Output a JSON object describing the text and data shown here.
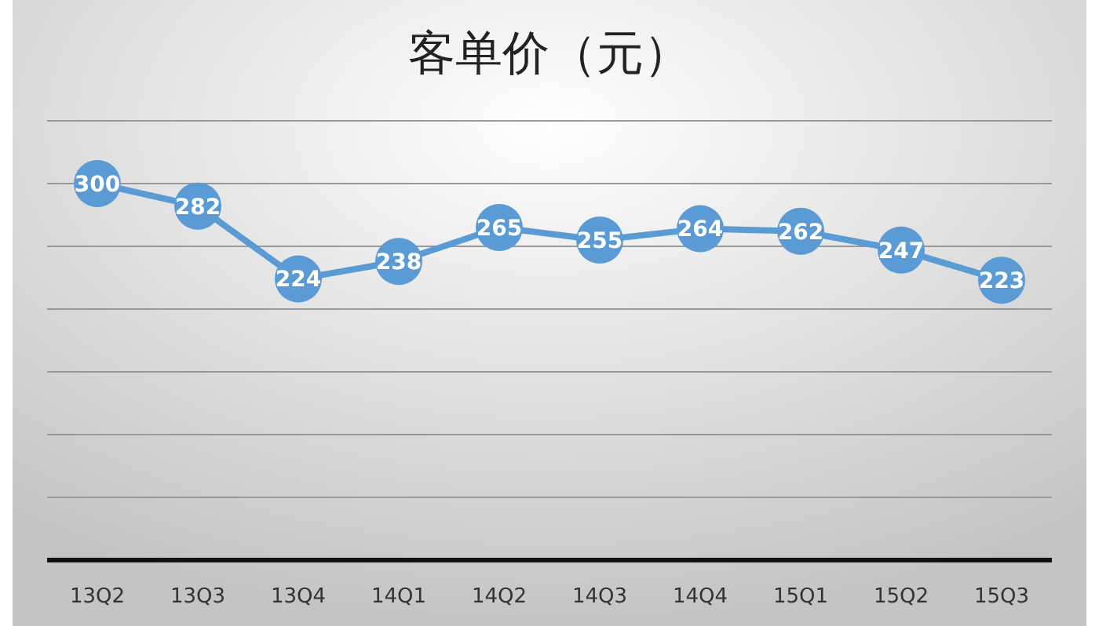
{
  "chart_data": {
    "type": "line",
    "title": "客单价（元）",
    "categories": [
      "13Q2",
      "13Q3",
      "13Q4",
      "14Q1",
      "14Q2",
      "14Q3",
      "14Q4",
      "15Q1",
      "15Q2",
      "15Q3"
    ],
    "series": [
      {
        "color": "#5b9bd5",
        "values": [
          300,
          282,
          224,
          238,
          265,
          255,
          264,
          262,
          247,
          223
        ]
      }
    ],
    "ylim": [
      0,
      350
    ],
    "yticks": [
      {
        "value": 0,
        "label": null
      },
      {
        "value": 50,
        "label": null
      },
      {
        "value": 100,
        "label": null
      },
      {
        "value": 150,
        "label": null
      },
      {
        "value": 200,
        "label": null
      },
      {
        "value": 250,
        "label": null
      },
      {
        "value": 300,
        "label": null
      },
      {
        "value": 350,
        "label": null
      }
    ],
    "grid": "y",
    "data_labels": true,
    "marker": "circle",
    "line_style": "solid",
    "tick_labels": "x"
  }
}
